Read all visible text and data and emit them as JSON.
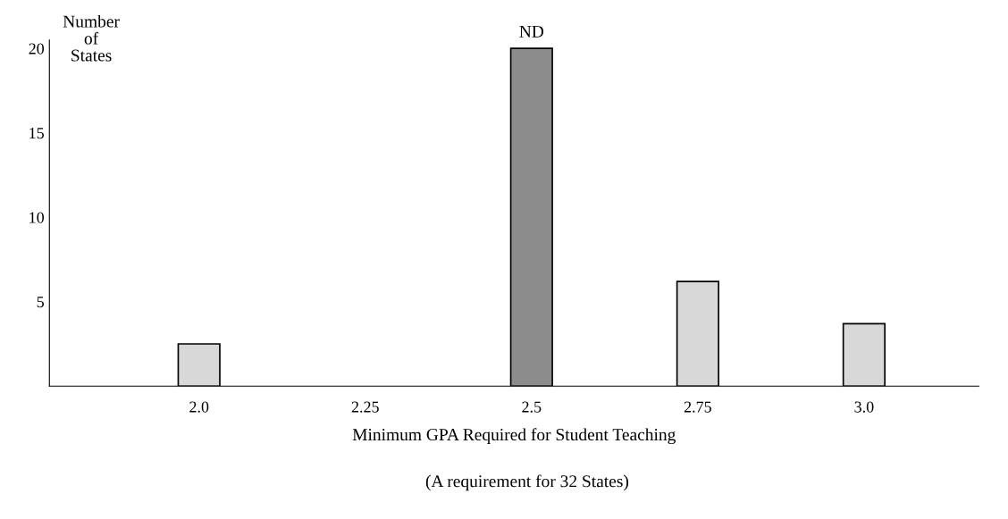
{
  "chart_data": {
    "type": "bar",
    "ylabel": "Number of States",
    "xlabel": "Minimum GPA Required for Student Teaching",
    "annotations": [
      {
        "text": "ND",
        "x": "2.5",
        "y": 20
      },
      "(A requirement for 32 States)"
    ],
    "categories": [
      "2.0",
      "2.25",
      "2.5",
      "2.75",
      "3.0"
    ],
    "values": [
      2.5,
      null,
      20,
      6.2,
      3.7
    ],
    "colors": [
      "#d8d8d8",
      "#d8d8d8",
      "#8c8c8c",
      "#d8d8d8",
      "#d8d8d8"
    ],
    "ylim": [
      0,
      20.5
    ],
    "yticks": [
      5,
      10,
      15,
      20
    ],
    "grid": false,
    "legend": false
  }
}
